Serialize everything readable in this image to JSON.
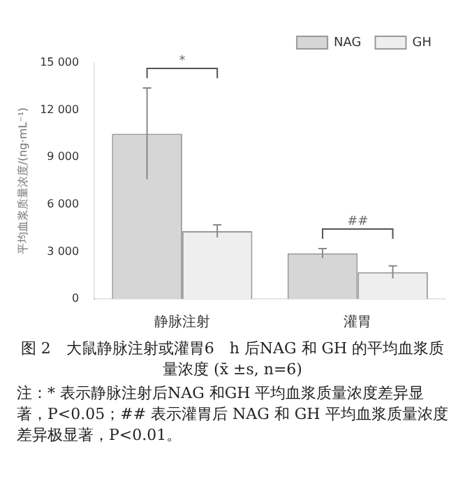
{
  "chart_data": {
    "type": "bar",
    "title": "图 2　大鼠静脉注射或灌胃6　h 后NAG 和 GH 的平均血浆质量浓度 (x̄ ±s, n=6)",
    "ylabel": "平均血浆质量浓度/(ng·mL⁻¹)",
    "categories": [
      "静脉注射",
      "灌胃"
    ],
    "series": [
      {
        "name": "NAG",
        "color": "#d6d6d6",
        "values": [
          10500,
          2900
        ],
        "errors": [
          2900,
          300
        ]
      },
      {
        "name": "GH",
        "color": "#eeeeee",
        "values": [
          4300,
          1700
        ],
        "errors": [
          400,
          400
        ]
      }
    ],
    "ylim": [
      0,
      15000
    ],
    "yticks": [
      {
        "value": 0,
        "label": "0"
      },
      {
        "value": 3000,
        "label": "3 000"
      },
      {
        "value": 6000,
        "label": "6 000"
      },
      {
        "value": 9000,
        "label": "9 000"
      },
      {
        "value": 12000,
        "label": "12 000"
      },
      {
        "value": 15000,
        "label": "15 000"
      }
    ],
    "annotations": [
      "*",
      "##",
      "注：* 表示静脉注射后NAG 和GH 平均血浆质量浓度差异显著，P<0.05；## 表示灌胃后 NAG 和 GH 平均血浆质量浓度差异极显著，P<0.01。"
    ],
    "grid": false,
    "legend": "top right"
  }
}
